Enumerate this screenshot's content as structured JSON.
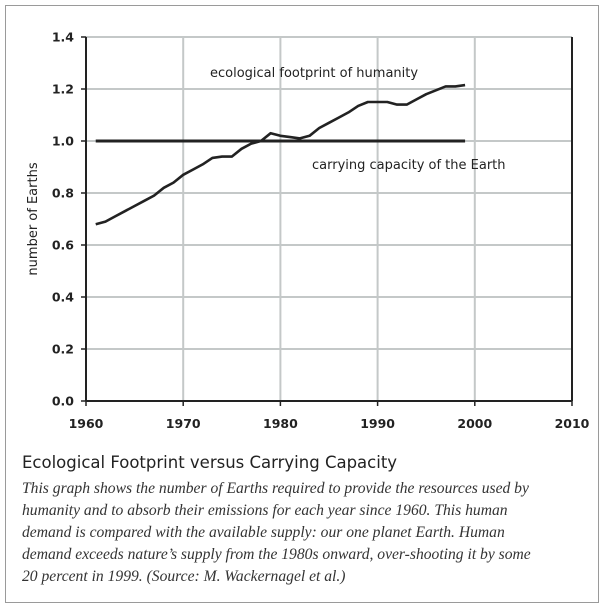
{
  "chart_data": {
    "type": "line",
    "title": "",
    "xlabel": "",
    "ylabel": "number of Earths",
    "xlim": [
      1960,
      2010
    ],
    "ylim": [
      0.0,
      1.4
    ],
    "xticks": [
      "1960",
      "1970",
      "1980",
      "1990",
      "2000",
      "2010"
    ],
    "yticks": [
      "0.0",
      "0.2",
      "0.4",
      "0.6",
      "0.8",
      "1.0",
      "1.2",
      "1.4"
    ],
    "grid": true,
    "series": [
      {
        "name": "ecological footprint of humanity",
        "x": [
          1961,
          1962,
          1963,
          1964,
          1965,
          1966,
          1967,
          1968,
          1969,
          1970,
          1971,
          1972,
          1973,
          1974,
          1975,
          1976,
          1977,
          1978,
          1979,
          1980,
          1981,
          1982,
          1983,
          1984,
          1985,
          1986,
          1987,
          1988,
          1989,
          1990,
          1991,
          1992,
          1993,
          1994,
          1995,
          1996,
          1997,
          1998,
          1999
        ],
        "values": [
          0.68,
          0.69,
          0.71,
          0.73,
          0.75,
          0.77,
          0.79,
          0.82,
          0.84,
          0.87,
          0.89,
          0.91,
          0.935,
          0.94,
          0.94,
          0.97,
          0.99,
          1.0,
          1.03,
          1.02,
          1.015,
          1.01,
          1.02,
          1.05,
          1.07,
          1.09,
          1.11,
          1.135,
          1.15,
          1.15,
          1.15,
          1.14,
          1.14,
          1.16,
          1.18,
          1.195,
          1.21,
          1.21,
          1.215
        ]
      },
      {
        "name": "carrying capacity of the Earth",
        "x": [
          1961,
          1999
        ],
        "values": [
          1.0,
          1.0
        ]
      }
    ],
    "colors": {
      "line": "#222222",
      "grid": "#c4c8c8",
      "axis": "#222222"
    }
  },
  "caption": {
    "title": "Ecological Footprint versus Carrying Capacity",
    "lines": [
      "This graph shows the number of Earths required to provide the resources used by",
      "humanity and to absorb their emissions for each year since 1960. This human",
      "demand is compared with the available supply: our one planet Earth. Human",
      "demand exceeds nature’s supply from the 1980s onward, over-shooting it by some",
      "20 percent in 1999. (Source: M. Wackernagel et al.)"
    ]
  }
}
